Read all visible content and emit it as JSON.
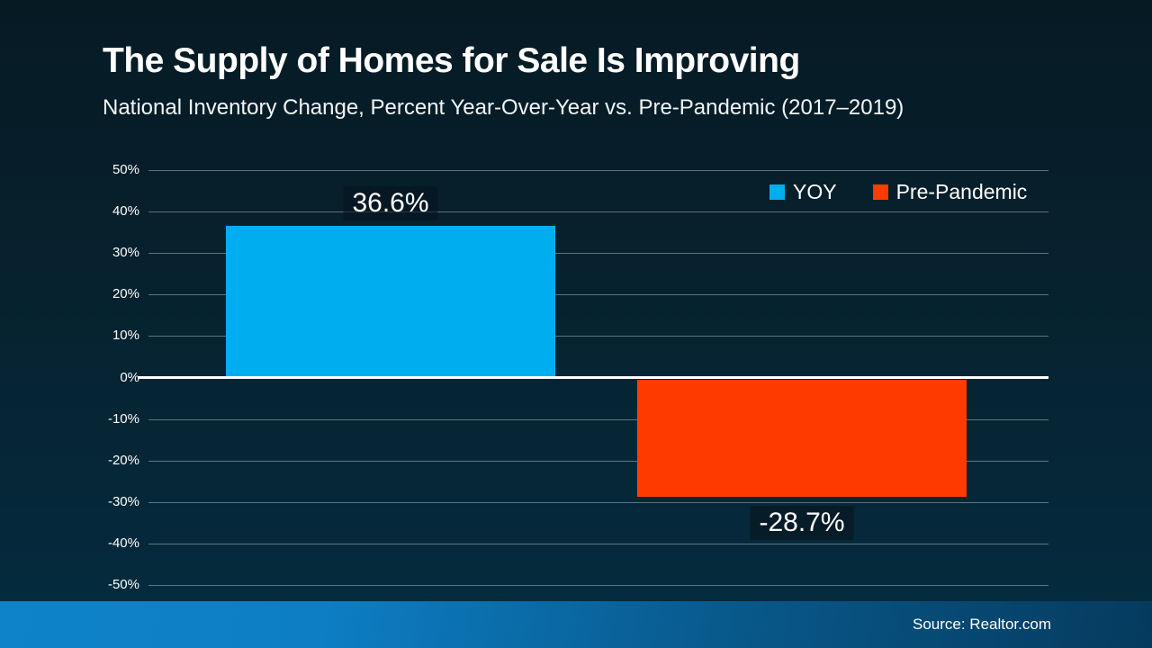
{
  "header": {
    "title": "The Supply of Homes for Sale Is Improving",
    "subtitle": "National Inventory Change, Percent Year-Over-Year vs. Pre-Pandemic (2017–2019)"
  },
  "chart_data": {
    "type": "bar",
    "title": "The Supply of Homes for Sale Is Improving",
    "subtitle": "National Inventory Change, Percent Year-Over-Year vs. Pre-Pandemic (2017–2019)",
    "categories": [
      "YOY",
      "Pre-Pandemic"
    ],
    "series": [
      {
        "name": "YOY",
        "value": 36.6,
        "label": "36.6%",
        "color": "#00AEEF"
      },
      {
        "name": "Pre-Pandemic",
        "value": -28.7,
        "label": "-28.7%",
        "color": "#FF3B00"
      }
    ],
    "ylim": [
      -50,
      50
    ],
    "ytick_step": 10,
    "ytick_labels": [
      "50%",
      "40%",
      "30%",
      "20%",
      "10%",
      "0%",
      "-10%",
      "-20%",
      "-30%",
      "-40%",
      "-50%"
    ],
    "zero_label": "0%",
    "grid": true,
    "legend_position": "top-right",
    "legend_entries": [
      "YOY",
      "Pre-Pandemic"
    ]
  },
  "footer": {
    "source": "Source: Realtor.com"
  },
  "colors": {
    "background_top": "#061a24",
    "background_bottom": "#042c40",
    "yoy_bar": "#00AEEF",
    "pre_pandemic_bar": "#FF3B00",
    "axis_line": "#ffffff",
    "footer_gradient_left": "#0e83c9",
    "footer_gradient_right": "#053a5e"
  }
}
